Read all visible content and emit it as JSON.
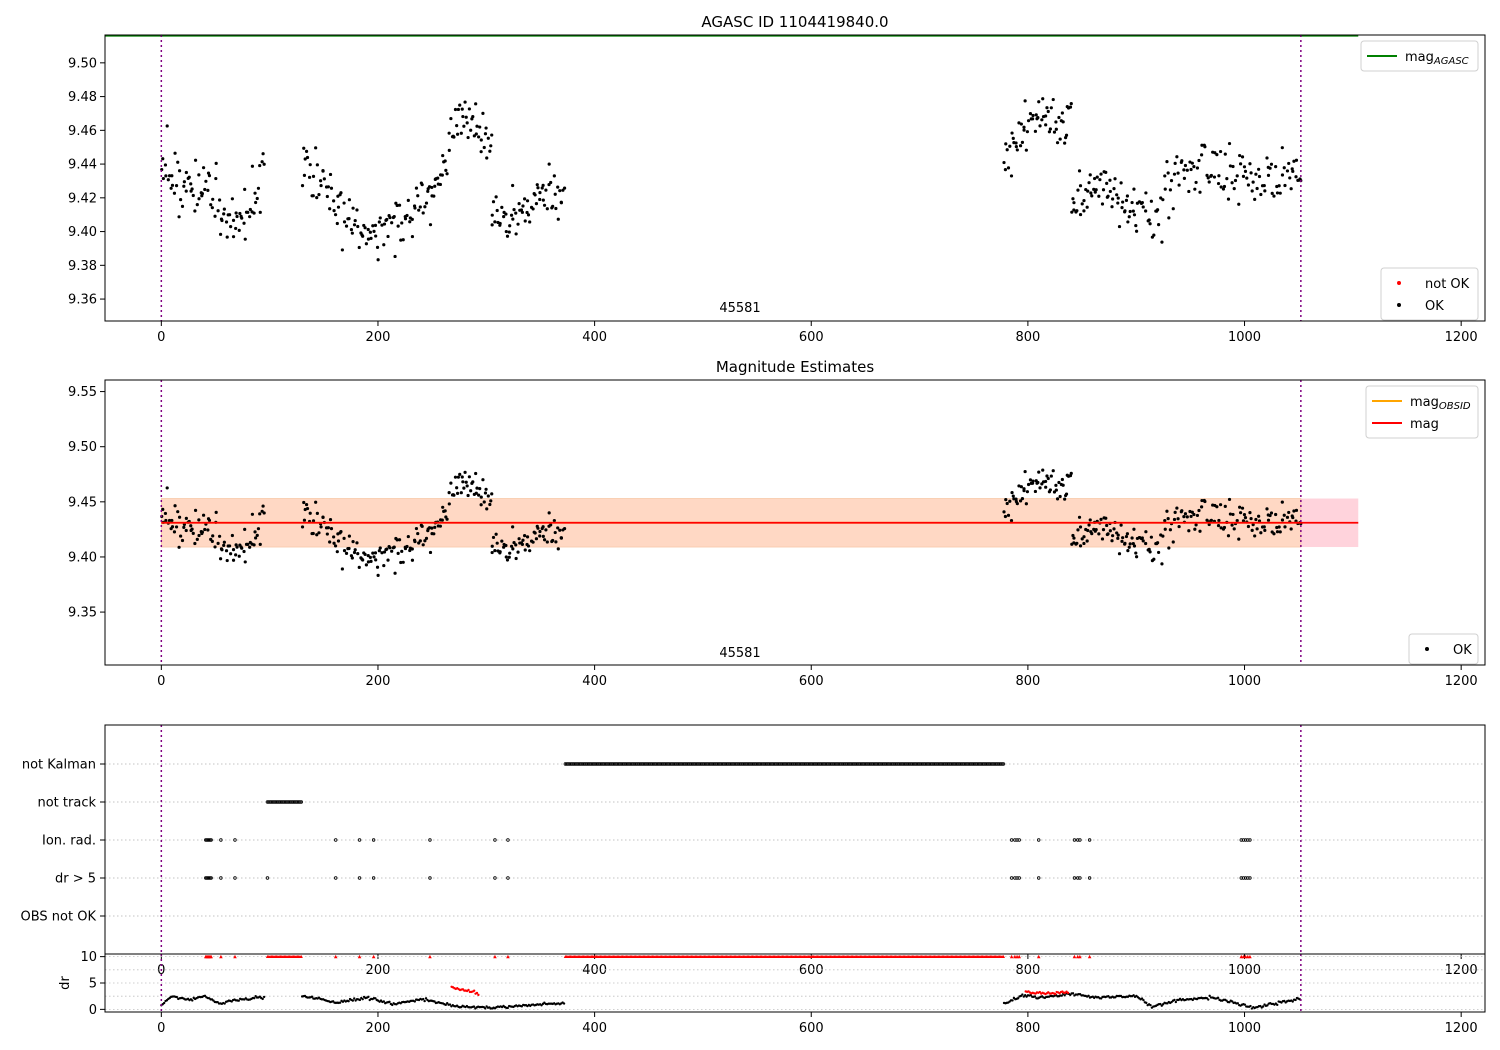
{
  "chart_data": [
    {
      "type": "scatter",
      "title": "AGASC ID 1104419840.0",
      "xlabel": "",
      "ylabel": "",
      "xlim": [
        -52,
        1222
      ],
      "ylim": [
        9.347,
        9.5165
      ],
      "xticks": [
        0,
        200,
        400,
        600,
        800,
        1000,
        1200
      ],
      "yticks": [
        9.36,
        9.38,
        9.4,
        9.42,
        9.44,
        9.46,
        9.48,
        9.5
      ],
      "vlines": [
        0,
        1052
      ],
      "obsid_label": "45581",
      "obsid_label_x": 525,
      "hlines": [
        {
          "name": "mag",
          "sub": "AGASC",
          "value": 9.516,
          "x": [
            -52,
            1105
          ],
          "color": "#008000"
        }
      ],
      "legend_top": [
        {
          "name": "mag",
          "sub": "AGASC",
          "color": "#008000",
          "kind": "line"
        }
      ],
      "legend_bottom": [
        {
          "name": "not OK",
          "color": "#ff0000",
          "kind": "dot"
        },
        {
          "name": "OK",
          "color": "#000000",
          "kind": "dot"
        }
      ],
      "series": [
        {
          "name": "OK",
          "color": "#000000",
          "segments": [
            {
              "x": [
                0,
                95
              ],
              "knots": [
                [
                  0,
                  9.437
                ],
                [
                  15,
                  9.428
                ],
                [
                  35,
                  9.424
                ],
                [
                  55,
                  9.415
                ],
                [
                  70,
                  9.4
                ],
                [
                  85,
                  9.415
                ],
                [
                  95,
                  9.44
                ]
              ],
              "noise": 0.011,
              "n": 90
            },
            {
              "x": [
                130,
                250
              ],
              "knots": [
                [
                  130,
                  9.44
                ],
                [
                  145,
                  9.43
                ],
                [
                  165,
                  9.41
                ],
                [
                  200,
                  9.401
                ],
                [
                  230,
                  9.41
                ],
                [
                  250,
                  9.42
                ]
              ],
              "noise": 0.01,
              "n": 110
            },
            {
              "x": [
                250,
                305
              ],
              "knots": [
                [
                  250,
                  9.425
                ],
                [
                  262,
                  9.44
                ],
                [
                  275,
                  9.472
                ],
                [
                  288,
                  9.462
                ],
                [
                  300,
                  9.455
                ],
                [
                  305,
                  9.45
                ]
              ],
              "noise": 0.008,
              "n": 55
            },
            {
              "x": [
                305,
                372
              ],
              "knots": [
                [
                  305,
                  9.41
                ],
                [
                  320,
                  9.405
                ],
                [
                  340,
                  9.415
                ],
                [
                  355,
                  9.425
                ],
                [
                  372,
                  9.42
                ]
              ],
              "noise": 0.009,
              "n": 65
            },
            {
              "x": [
                778,
                840
              ],
              "knots": [
                [
                  778,
                  9.445
                ],
                [
                  795,
                  9.46
                ],
                [
                  810,
                  9.468
                ],
                [
                  825,
                  9.465
                ],
                [
                  840,
                  9.47
                ]
              ],
              "noise": 0.009,
              "n": 60
            },
            {
              "x": [
                840,
                900
              ],
              "knots": [
                [
                  840,
                  9.41
                ],
                [
                  855,
                  9.425
                ],
                [
                  870,
                  9.43
                ],
                [
                  885,
                  9.42
                ],
                [
                  900,
                  9.415
                ]
              ],
              "noise": 0.011,
              "n": 60
            },
            {
              "x": [
                900,
                1052
              ],
              "knots": [
                [
                  900,
                  9.415
                ],
                [
                  915,
                  9.405
                ],
                [
                  935,
                  9.43
                ],
                [
                  960,
                  9.44
                ],
                [
                  985,
                  9.435
                ],
                [
                  1010,
                  9.43
                ],
                [
                  1030,
                  9.43
                ],
                [
                  1052,
                  9.435
                ]
              ],
              "noise": 0.01,
              "n": 130
            }
          ]
        }
      ]
    },
    {
      "type": "scatter",
      "title": "Magnitude Estimates",
      "xlabel": "",
      "ylabel": "",
      "xlim": [
        -52,
        1222
      ],
      "ylim": [
        9.302,
        9.5605
      ],
      "xticks": [
        0,
        200,
        400,
        600,
        800,
        1000,
        1200
      ],
      "yticks": [
        9.35,
        9.4,
        9.45,
        9.5,
        9.55
      ],
      "vlines": [
        0,
        1052
      ],
      "obsid_label": "45581",
      "obsid_label_x": 525,
      "band_outer": {
        "y": [
          9.409,
          9.453
        ],
        "x": [
          0,
          1105
        ],
        "color": "#ffd3dc"
      },
      "band_inner": {
        "y": [
          9.409,
          9.453
        ],
        "x": [
          0,
          1052
        ],
        "color": "#ffd8c4"
      },
      "hlines": [
        {
          "name": "mag",
          "sub": "OBSID",
          "value": 9.431,
          "x": [
            0,
            1052
          ],
          "color": "#ffa500"
        },
        {
          "name": "mag",
          "sub": "",
          "value": 9.431,
          "x": [
            0,
            1105
          ],
          "color": "#ff0000"
        }
      ],
      "legend_top": [
        {
          "name": "mag",
          "sub": "OBSID",
          "color": "#ffa500",
          "kind": "line"
        },
        {
          "name": "mag",
          "sub": "",
          "color": "#ff0000",
          "kind": "line"
        }
      ],
      "legend_bottom": [
        {
          "name": "OK",
          "color": "#000000",
          "kind": "dot"
        }
      ],
      "series": [
        {
          "name": "OK",
          "color": "#000000",
          "segments": "same as panel 1"
        }
      ]
    },
    {
      "type": "scatter",
      "title": "",
      "xlabel": "",
      "ylabel": "",
      "xlim": [
        -52,
        1222
      ],
      "xticks": [
        0,
        200,
        400,
        600,
        800,
        1000,
        1200
      ],
      "vlines": [
        0,
        1052
      ],
      "categories": [
        "not Kalman",
        "not track",
        "Ion. rad.",
        "dr > 5",
        "OBS not OK"
      ],
      "flags": [
        {
          "category": "not Kalman",
          "ranges": [
            [
              373,
              778
            ]
          ]
        },
        {
          "category": "not track",
          "ranges": [
            [
              98,
              130
            ]
          ]
        },
        {
          "category": "Ion. rad.",
          "points": [
            41,
            42,
            43,
            44,
            45,
            46,
            55,
            68,
            161,
            183,
            196,
            248,
            308,
            320,
            785,
            788,
            790,
            792,
            810,
            843,
            846,
            848,
            857,
            997,
            999,
            1001,
            1003,
            1005
          ]
        },
        {
          "category": "dr > 5",
          "points": [
            41,
            42,
            43,
            44,
            45,
            46,
            55,
            68,
            98,
            161,
            183,
            196,
            248,
            308,
            320,
            785,
            788,
            790,
            792,
            810,
            843,
            846,
            848,
            857,
            997,
            999,
            1001,
            1003,
            1005
          ]
        },
        {
          "category": "OBS not OK",
          "points": []
        }
      ]
    },
    {
      "type": "scatter",
      "title": "",
      "xlabel": "",
      "ylabel": "dr",
      "xlim": [
        -52,
        1222
      ],
      "ylim": [
        -0.5,
        10.5
      ],
      "xticks": [
        0,
        200,
        400,
        600,
        800,
        1000,
        1200
      ],
      "yticks": [
        0,
        5,
        10
      ],
      "vlines": [
        0,
        1052
      ],
      "series": [
        {
          "name": "OK",
          "color": "#000000",
          "segments": [
            {
              "x": [
                0,
                95
              ],
              "knots": [
                [
                  0,
                  0.8
                ],
                [
                  10,
                  2.5
                ],
                [
                  25,
                  1.8
                ],
                [
                  40,
                  2.5
                ],
                [
                  55,
                  1.0
                ],
                [
                  70,
                  1.8
                ],
                [
                  95,
                  2.3
                ]
              ]
            },
            {
              "x": [
                130,
                372
              ],
              "knots": [
                [
                  130,
                  2.6
                ],
                [
                  160,
                  1.3
                ],
                [
                  190,
                  2.2
                ],
                [
                  215,
                  1.0
                ],
                [
                  240,
                  2.0
                ],
                [
                  262,
                  1.0
                ],
                [
                  275,
                  0.5
                ],
                [
                  305,
                  0.3
                ],
                [
                  330,
                  0.7
                ],
                [
                  372,
                  1.2
                ]
              ]
            },
            {
              "x": [
                778,
                1052
              ],
              "knots": [
                [
                  778,
                  1.0
                ],
                [
                  795,
                  2.7
                ],
                [
                  815,
                  2.2
                ],
                [
                  840,
                  3.0
                ],
                [
                  865,
                  2.2
                ],
                [
                  900,
                  2.5
                ],
                [
                  915,
                  0.5
                ],
                [
                  940,
                  1.8
                ],
                [
                  970,
                  2.3
                ],
                [
                  995,
                  1.0
                ],
                [
                  1010,
                  0.3
                ],
                [
                  1030,
                  1.2
                ],
                [
                  1052,
                  2.0
                ]
              ]
            }
          ]
        },
        {
          "name": "not OK",
          "color": "#ff0000",
          "segments": [
            {
              "x": [
                268,
                293
              ],
              "knots": [
                [
                  268,
                  4.3
                ],
                [
                  280,
                  3.6
                ],
                [
                  293,
                  3.0
                ]
              ]
            },
            {
              "x": [
                798,
                838
              ],
              "knots": [
                [
                  798,
                  3.3
                ],
                [
                  818,
                  3.0
                ],
                [
                  838,
                  3.2
                ]
              ]
            }
          ],
          "clipped_at_top": [
            {
              "ranges": [
                [
                  98,
                  130
                ],
                [
                  373,
                  778
                ]
              ]
            },
            {
              "points": [
                41,
                42,
                43,
                44,
                45,
                46,
                55,
                68,
                161,
                183,
                196,
                248,
                308,
                320,
                785,
                788,
                790,
                792,
                810,
                843,
                846,
                848,
                857,
                997,
                999,
                1001,
                1003,
                1005
              ]
            }
          ]
        }
      ]
    }
  ]
}
